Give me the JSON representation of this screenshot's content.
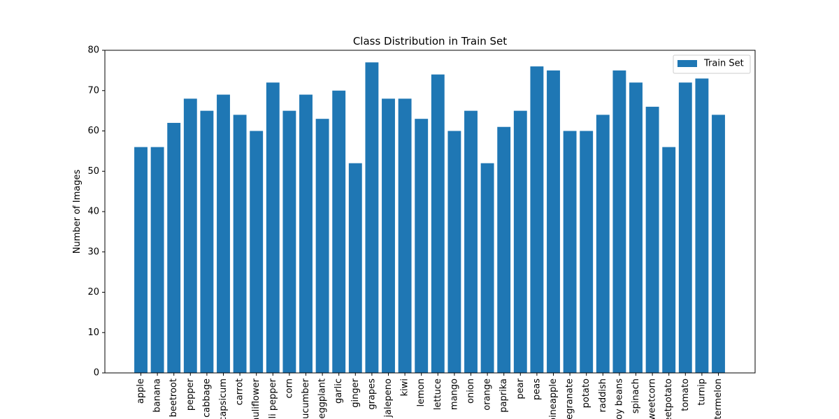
{
  "chart_data": {
    "type": "bar",
    "title": "Class Distribution in Train Set",
    "xlabel": "",
    "ylabel": "Number of Images",
    "ylim": [
      0,
      80
    ],
    "yticks": [
      0,
      10,
      20,
      30,
      40,
      50,
      60,
      70,
      80
    ],
    "grid": false,
    "legend_position": "top-right",
    "categories": [
      "apple",
      "banana",
      "beetroot",
      "pepper",
      "cabbage",
      "capsicum",
      "carrot",
      "cauliflower",
      "chilli pepper",
      "corn",
      "cucumber",
      "eggplant",
      "garlic",
      "ginger",
      "grapes",
      "jalepeno",
      "kiwi",
      "lemon",
      "lettuce",
      "mango",
      "onion",
      "orange",
      "paprika",
      "pear",
      "peas",
      "pineapple",
      "pomegranate",
      "potato",
      "raddish",
      "soy beans",
      "spinach",
      "sweetcorn",
      "sweetpotato",
      "tomato",
      "turnip",
      "watermelon"
    ],
    "series": [
      {
        "name": "Train Set",
        "color": "#1f77b4",
        "values": [
          56,
          56,
          62,
          68,
          65,
          69,
          64,
          60,
          72,
          65,
          69,
          63,
          70,
          52,
          77,
          68,
          68,
          63,
          74,
          60,
          65,
          52,
          61,
          65,
          76,
          75,
          60,
          60,
          64,
          75,
          72,
          66,
          56,
          72,
          73,
          64
        ]
      }
    ]
  }
}
